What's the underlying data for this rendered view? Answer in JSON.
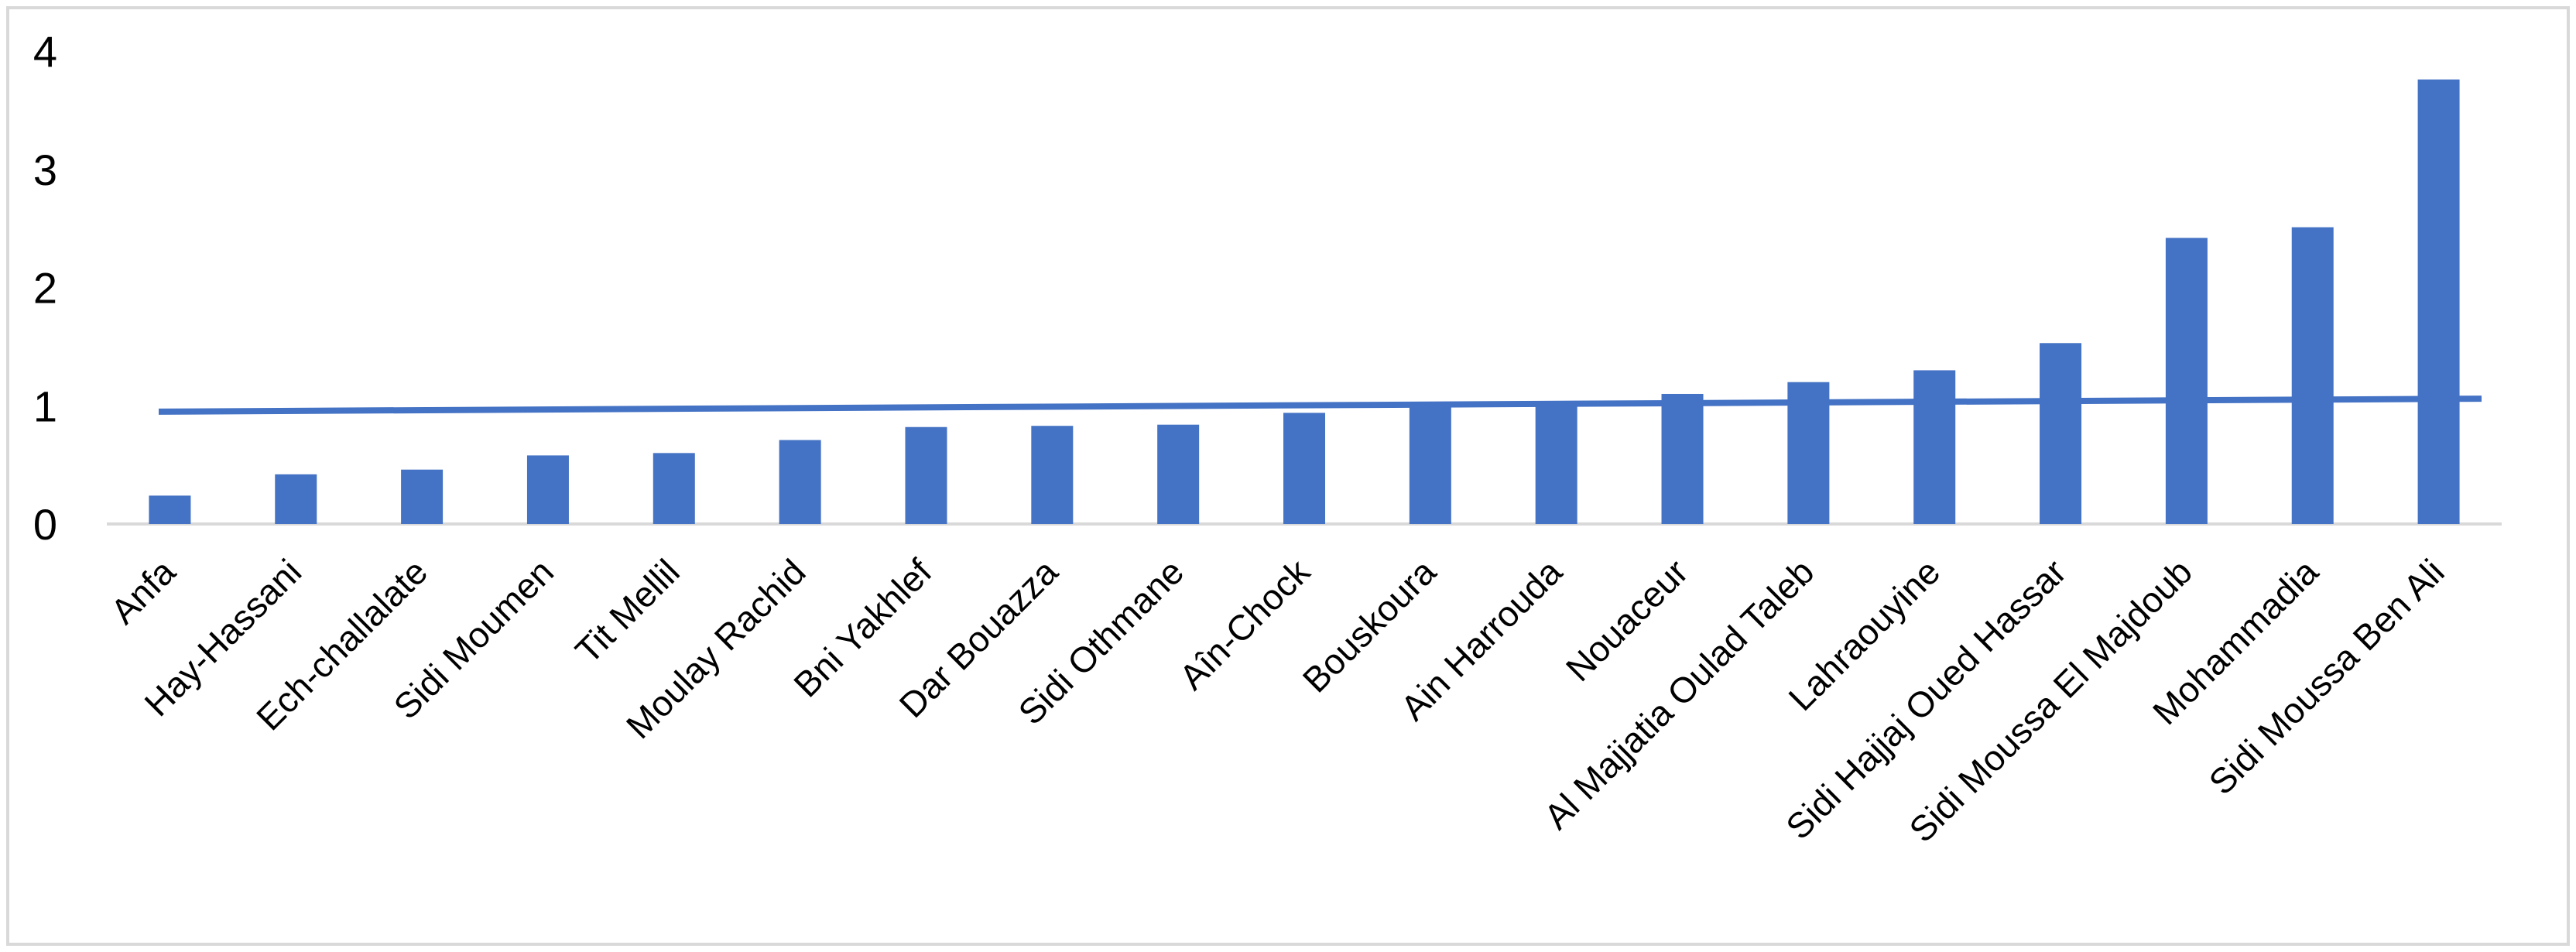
{
  "chart_data": {
    "type": "bar",
    "categories": [
      "Anfa",
      "Hay-Hassani",
      "Ech-challalate",
      "Sidi Moumen",
      "Tit Mellil",
      "Moulay Rachid",
      "Bni Yakhlef",
      "Dar Bouazza",
      "Sidi Othmane",
      "Aîn-Chock",
      "Bouskoura",
      "Ain Harrouda",
      "Nouaceur",
      "Al Majjatia Oulad Taleb",
      "Lahraouyine",
      "Sidi Hajjaj Oued Hassar",
      "Sidi Moussa El Majdoub",
      "Mohammadia",
      "Sidi Moussa Ben Ali"
    ],
    "values": [
      0.24,
      0.42,
      0.46,
      0.58,
      0.6,
      0.71,
      0.82,
      0.83,
      0.84,
      0.94,
      1.01,
      1.01,
      1.1,
      1.2,
      1.3,
      1.53,
      2.42,
      2.51,
      3.76
    ],
    "trendline": {
      "start": 0.95,
      "end": 1.06
    },
    "yticks": [
      "0",
      "1",
      "2",
      "3",
      "4"
    ],
    "ylim": [
      0,
      4
    ],
    "title": "",
    "xlabel": "",
    "ylabel": "",
    "grid": false,
    "legend": "none",
    "colors": {
      "bar": "#4472c4",
      "trend": "#4472c4",
      "axis": "#d9d9d9"
    }
  }
}
